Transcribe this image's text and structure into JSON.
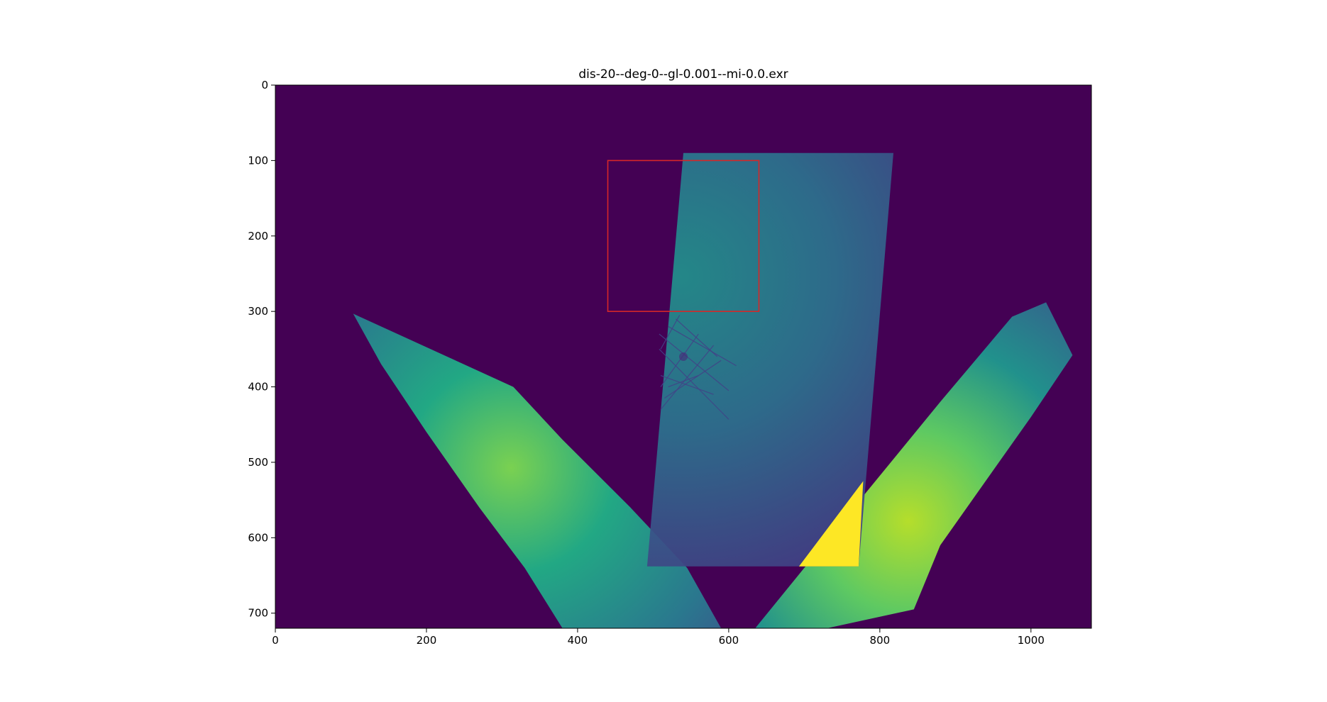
{
  "chart_data": {
    "type": "heatmap",
    "title": "dis-20--deg-0--gl-0.001--mi-0.0.exr",
    "xlabel": "",
    "ylabel": "",
    "xlim": [
      0,
      1080
    ],
    "ylim": [
      720,
      0
    ],
    "x_ticks": [
      "0",
      "200",
      "400",
      "600",
      "800",
      "1000"
    ],
    "y_ticks": [
      "0",
      "100",
      "200",
      "300",
      "400",
      "500",
      "600",
      "700"
    ],
    "x_tick_values": [
      0,
      200,
      400,
      600,
      800,
      1000
    ],
    "y_tick_values": [
      0,
      100,
      200,
      300,
      400,
      500,
      600,
      700
    ],
    "grid": false,
    "colormap": "viridis",
    "colors": {
      "background": "#440154",
      "low": "#3b528b",
      "mid": "#21918c",
      "high": "#5ec962",
      "max": "#fde725",
      "annotation": "#d62728"
    },
    "regions": [
      {
        "shape": "left-arc-band",
        "polygon": [
          [
            103,
            303
          ],
          [
            315,
            400
          ],
          [
            380,
            470
          ],
          [
            470,
            560
          ],
          [
            545,
            640
          ],
          [
            590,
            720
          ],
          [
            380,
            720
          ],
          [
            330,
            640
          ],
          [
            270,
            560
          ],
          [
            200,
            460
          ],
          [
            140,
            370
          ]
        ]
      },
      {
        "shape": "right-arc-band",
        "polygon": [
          [
            1020,
            288
          ],
          [
            1055,
            358
          ],
          [
            1000,
            440
          ],
          [
            940,
            525
          ],
          [
            880,
            610
          ],
          [
            845,
            695
          ],
          [
            730,
            720
          ],
          [
            635,
            720
          ],
          [
            700,
            640
          ],
          [
            790,
            530
          ],
          [
            880,
            420
          ],
          [
            975,
            307
          ]
        ]
      },
      {
        "shape": "central-parallelogram",
        "polygon": [
          [
            540,
            90
          ],
          [
            818,
            90
          ],
          [
            772,
            638
          ],
          [
            492,
            638
          ]
        ]
      },
      {
        "shape": "saturated-overlap",
        "polygon": [
          [
            778,
            525
          ],
          [
            772,
            638
          ],
          [
            693,
            638
          ]
        ]
      }
    ],
    "annotations": [
      {
        "shape": "rectangle",
        "x0": 440,
        "y0": 100,
        "x1": 640,
        "y1": 300,
        "color": "#d62728"
      }
    ],
    "line_cluster": {
      "center": [
        540,
        360
      ],
      "segments": [
        [
          [
            508,
            350
          ],
          [
            600,
            443
          ]
        ],
        [
          [
            508,
            330
          ],
          [
            600,
            405
          ]
        ],
        [
          [
            520,
            320
          ],
          [
            610,
            372
          ]
        ],
        [
          [
            530,
            310
          ],
          [
            585,
            360
          ]
        ],
        [
          [
            535,
            305
          ],
          [
            510,
            350
          ]
        ],
        [
          [
            560,
            330
          ],
          [
            510,
            400
          ]
        ],
        [
          [
            580,
            345
          ],
          [
            510,
            430
          ]
        ],
        [
          [
            590,
            365
          ],
          [
            515,
            415
          ]
        ],
        [
          [
            560,
            385
          ],
          [
            520,
            400
          ]
        ],
        [
          [
            510,
            385
          ],
          [
            580,
            410
          ]
        ]
      ]
    }
  }
}
